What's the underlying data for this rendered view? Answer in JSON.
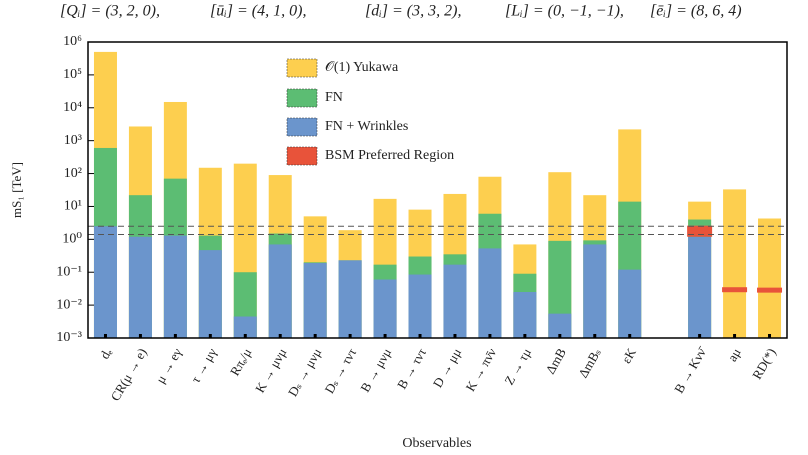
{
  "chart_data": {
    "type": "bar",
    "annotations": [
      "[Qᵢ] = (3, 2, 0),",
      "[ūᵢ] = (4, 1, 0),",
      "[dᵢ] = (3, 3, 2),",
      "[Lᵢ] = (0, −1, −1),",
      "[ēᵢ] = (8, 6, 4)"
    ],
    "y_label": "mS₁ [TeV]",
    "x_label": "Observables",
    "log_y": true,
    "ylim": [
      0.001,
      1000000
    ],
    "yticks": [
      {
        "value": 0.001,
        "label": "10⁻³"
      },
      {
        "value": 0.01,
        "label": "10⁻²"
      },
      {
        "value": 0.1,
        "label": "10⁻¹"
      },
      {
        "value": 1,
        "label": "10⁰"
      },
      {
        "value": 10,
        "label": "10¹"
      },
      {
        "value": 100,
        "label": "10²"
      },
      {
        "value": 1000,
        "label": "10³"
      },
      {
        "value": 10000,
        "label": "10⁴"
      },
      {
        "value": 100000,
        "label": "10⁵"
      },
      {
        "value": 1000000,
        "label": "10⁶"
      }
    ],
    "categories": [
      "dₑ",
      "CR(μ → e)",
      "μ → eγ",
      "τ → μγ",
      "Rπₑ/μ",
      "K → μνμ",
      "Dₛ → μνμ",
      "Dₛ → τντ",
      "B → μνμ",
      "B → τντ",
      "D → μμ",
      "K → πν̄ν",
      "Z → τμ",
      "ΔmB",
      "ΔmBₛ",
      "εK",
      null,
      "B → Kνν̄",
      "aμ",
      "RD(*)"
    ],
    "series": [
      {
        "name": "𝒪(1) Yukawa",
        "color": "#fdcf4f",
        "values": [
          500000,
          2700,
          15000,
          150,
          200,
          90,
          5,
          1.9,
          17,
          8,
          24,
          80,
          0.7,
          110,
          22,
          2200,
          null,
          14,
          33,
          4.3
        ]
      },
      {
        "name": "FN",
        "color": "#5cbd73",
        "values": [
          600,
          22,
          70,
          1.3,
          0.1,
          1.5,
          0.2,
          0.23,
          0.17,
          0.3,
          0.35,
          6,
          0.09,
          0.9,
          0.93,
          14,
          null,
          4,
          null,
          null
        ]
      },
      {
        "name": "FN + Wrinkles",
        "color": "#6b95cc",
        "values": [
          2.5,
          1.2,
          1.3,
          0.47,
          0.0045,
          0.7,
          0.19,
          0.23,
          0.06,
          0.085,
          0.17,
          0.53,
          0.025,
          0.0055,
          0.7,
          0.12,
          null,
          1.2,
          null,
          null
        ]
      },
      {
        "name": "BSM Preferred Region",
        "color": "#e8533a",
        "ranges": [
          null,
          null,
          null,
          null,
          null,
          null,
          null,
          null,
          null,
          null,
          null,
          null,
          null,
          null,
          null,
          null,
          null,
          [
            1.2,
            2.6
          ],
          [
            0.028,
            0.035
          ],
          [
            0.027,
            0.034
          ]
        ]
      }
    ],
    "hlines": [
      2.5,
      1.4
    ],
    "legend": "upper-center"
  }
}
